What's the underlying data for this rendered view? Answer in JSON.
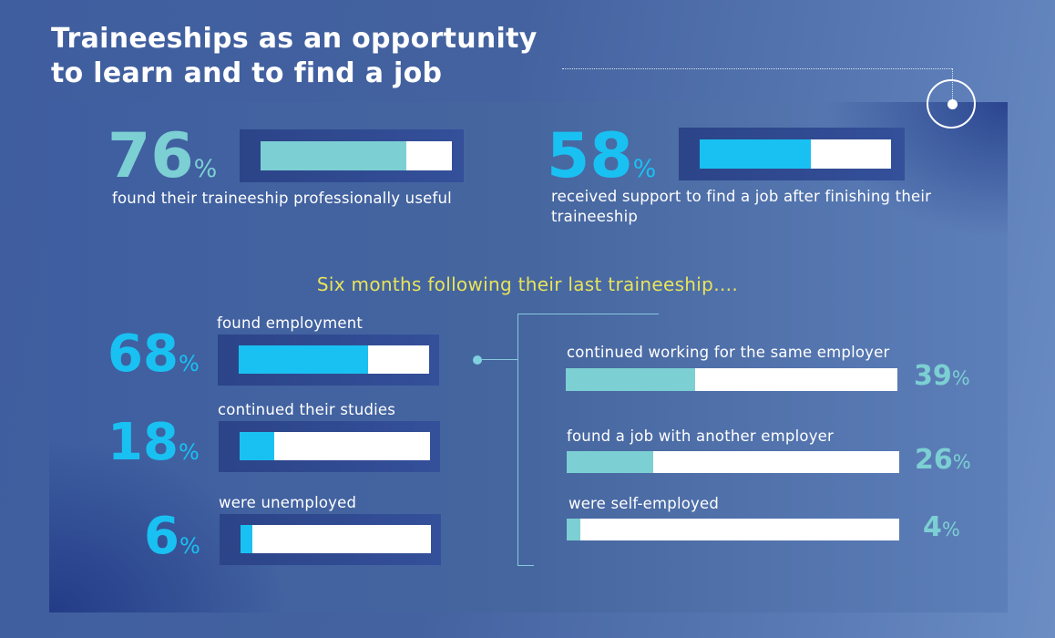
{
  "title_line1": "Traineeships as an opportunity",
  "title_line2": "to learn and to find a job",
  "subheading": "Six months following their last traineeship….",
  "percent_sign": "%",
  "colors": {
    "teal": "#7ccfd3",
    "cyan": "#19c1f2",
    "title_yellow": "#e8e45a",
    "white": "#ffffff"
  },
  "chart_data": [
    {
      "type": "bar",
      "orientation": "horizontal",
      "categories": [
        "found their traineeship professionally useful",
        "received support to find a job after finishing their traineeship"
      ],
      "values": [
        76,
        58
      ],
      "unit": "%",
      "xlim": [
        0,
        100
      ]
    },
    {
      "type": "bar",
      "orientation": "horizontal",
      "categories": [
        "found employment",
        "continued their studies",
        "were unemployed"
      ],
      "values": [
        68,
        18,
        6
      ],
      "unit": "%",
      "xlim": [
        0,
        100
      ]
    },
    {
      "type": "bar",
      "orientation": "horizontal",
      "categories": [
        "continued working for the same employer",
        "found a job with another employer",
        "were self-employed"
      ],
      "values": [
        39,
        26,
        4
      ],
      "unit": "%",
      "xlim": [
        0,
        100
      ]
    }
  ]
}
